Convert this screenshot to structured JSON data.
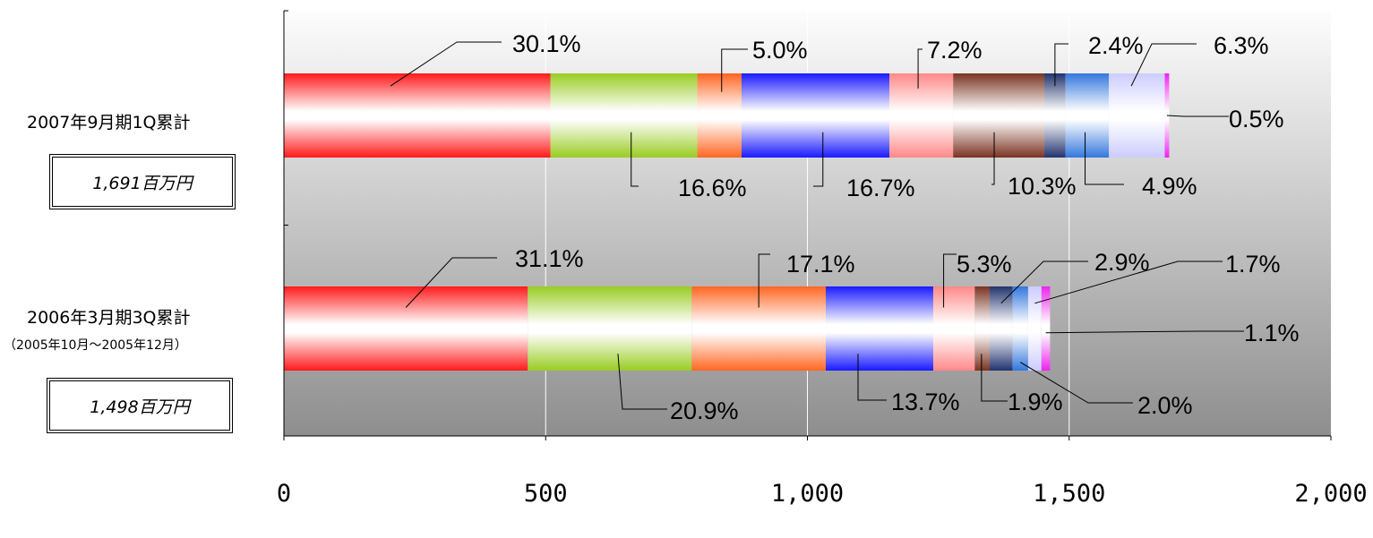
{
  "chart_data": {
    "type": "bar",
    "orientation": "horizontal",
    "stacked": true,
    "title": "",
    "xlabel": "",
    "ylabel": "",
    "xlim": [
      0,
      2000
    ],
    "x_ticks": [
      0,
      500,
      1000,
      1500,
      2000
    ],
    "x_tick_labels": [
      "0",
      "500",
      "1,000",
      "1,500",
      "2,000"
    ],
    "grid": "vertical",
    "legend": "none",
    "segment_colors": [
      "#ff1a1a",
      "#99cc22",
      "#ff6622",
      "#1a1aff",
      "#ff8888",
      "#7a3322",
      "#22336e",
      "#3377dd",
      "#ccccff",
      "#ee22ee"
    ],
    "categories": [
      {
        "label": "2007年9月期1Q累計",
        "sublabel": "",
        "total_label": "1,691百万円",
        "total": 1691,
        "shares": [
          30.1,
          16.6,
          5.0,
          16.7,
          7.2,
          10.3,
          2.4,
          4.9,
          6.3,
          0.5
        ],
        "share_labels": [
          "30.1%",
          "16.6%",
          "5.0%",
          "16.7%",
          "7.2%",
          "10.3%",
          "2.4%",
          "4.9%",
          "6.3%",
          "0.5%"
        ]
      },
      {
        "label": "2006年3月期3Q累計",
        "sublabel": "（2005年10月～2005年12月）",
        "total_label": "1,498百万円",
        "total": 1498,
        "shares": [
          31.1,
          20.9,
          17.1,
          13.7,
          5.3,
          1.9,
          2.9,
          2.0,
          1.7,
          1.1
        ],
        "share_labels": [
          "31.1%",
          "20.9%",
          "17.1%",
          "13.7%",
          "5.3%",
          "1.9%",
          "2.9%",
          "2.0%",
          "1.7%",
          "1.1%"
        ]
      }
    ]
  }
}
